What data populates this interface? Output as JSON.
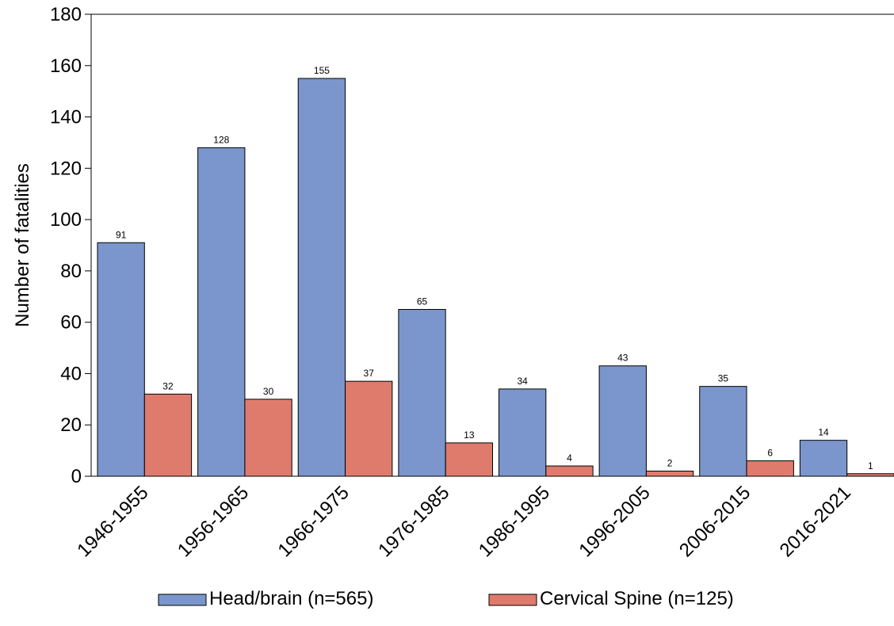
{
  "chart_data": {
    "type": "bar",
    "title": "",
    "xlabel": "",
    "ylabel": "Number of fatalities",
    "ylim": [
      0,
      180
    ],
    "yticks": [
      0,
      20,
      40,
      60,
      80,
      100,
      120,
      140,
      160,
      180
    ],
    "grid": false,
    "legend_position": "bottom",
    "categories": [
      "1946-1955",
      "1956-1965",
      "1966-1975",
      "1976-1985",
      "1986-1995",
      "1996-2005",
      "2006-2015",
      "2016-2021"
    ],
    "series": [
      {
        "name": "Head/brain (n=565)",
        "color": "#7b96cc",
        "values": [
          91,
          128,
          155,
          65,
          34,
          43,
          35,
          14
        ]
      },
      {
        "name": "Cervical Spine (n=125)",
        "color": "#df7b6c",
        "values": [
          32,
          30,
          37,
          13,
          4,
          2,
          6,
          1
        ]
      }
    ]
  }
}
